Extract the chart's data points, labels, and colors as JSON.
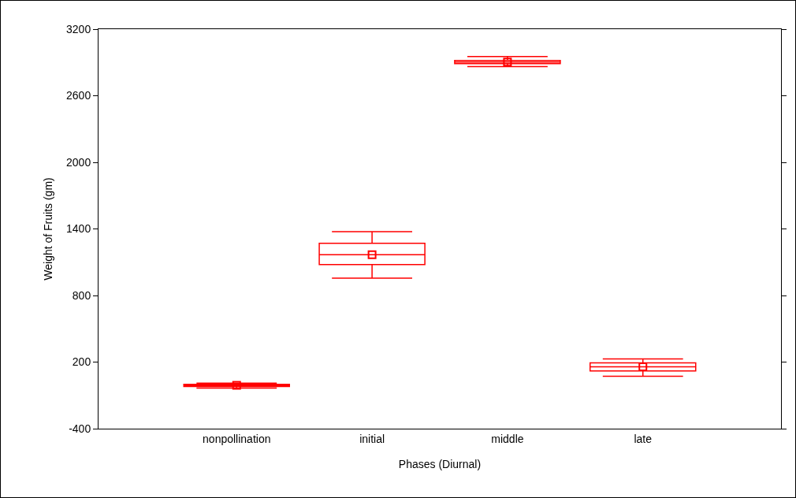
{
  "chart_data": {
    "type": "box",
    "xlabel": "Phases (Diurnal)",
    "ylabel": "Weight of Fruits (gm)",
    "categories": [
      "nonpollination",
      "initial",
      "middle",
      "late"
    ],
    "color": "#ff0000",
    "marker": "square",
    "boxes": [
      {
        "low": -35,
        "q1": -20,
        "median": -10,
        "q3": 0,
        "high": 10,
        "mean": -10
      },
      {
        "low": 957,
        "q1": 1078,
        "median": 1167,
        "q3": 1270,
        "high": 1376,
        "mean": 1167
      },
      {
        "low": 2863,
        "q1": 2889,
        "median": 2903,
        "q3": 2918,
        "high": 2953,
        "mean": 2903
      },
      {
        "low": 72,
        "q1": 121,
        "median": 158,
        "q3": 193,
        "high": 228,
        "mean": 158
      }
    ],
    "ylim": [
      -400,
      3200
    ],
    "yticks": [
      -400,
      200,
      800,
      1400,
      2000,
      2600,
      3200
    ]
  }
}
